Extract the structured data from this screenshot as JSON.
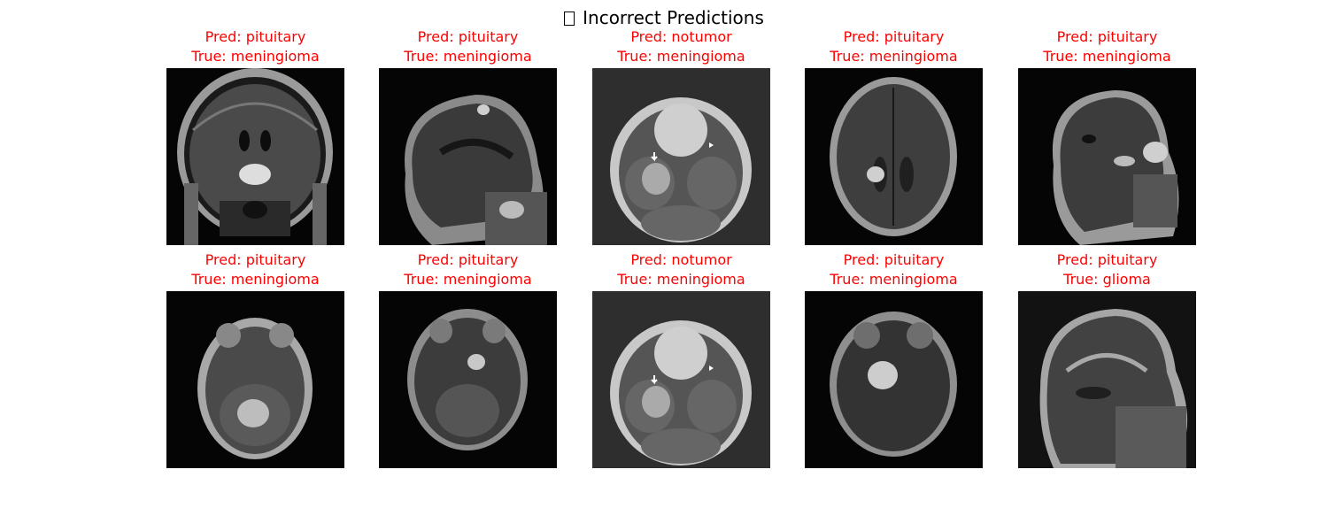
{
  "figure": {
    "title": "Incorrect Predictions",
    "title_icon": "missing-glyph-icon"
  },
  "colors": {
    "caption": "#ff0000",
    "background": "#ffffff",
    "scan_background": "#050505"
  },
  "panels": [
    {
      "pred": "Pred: pituitary",
      "true": "True: meningioma",
      "view": "coronal"
    },
    {
      "pred": "Pred: pituitary",
      "true": "True: meningioma",
      "view": "sagittal"
    },
    {
      "pred": "Pred: notumor",
      "true": "True: meningioma",
      "view": "axial-lesion"
    },
    {
      "pred": "Pred: pituitary",
      "true": "True: meningioma",
      "view": "axial"
    },
    {
      "pred": "Pred: pituitary",
      "true": "True: meningioma",
      "view": "sagittal"
    },
    {
      "pred": "Pred: pituitary",
      "true": "True: meningioma",
      "view": "axial-lesion"
    },
    {
      "pred": "Pred: pituitary",
      "true": "True: meningioma",
      "view": "axial"
    },
    {
      "pred": "Pred: notumor",
      "true": "True: meningioma",
      "view": "axial-lesion"
    },
    {
      "pred": "Pred: pituitary",
      "true": "True: meningioma",
      "view": "axial-lesion"
    },
    {
      "pred": "Pred: pituitary",
      "true": "True: glioma",
      "view": "sagittal"
    }
  ]
}
